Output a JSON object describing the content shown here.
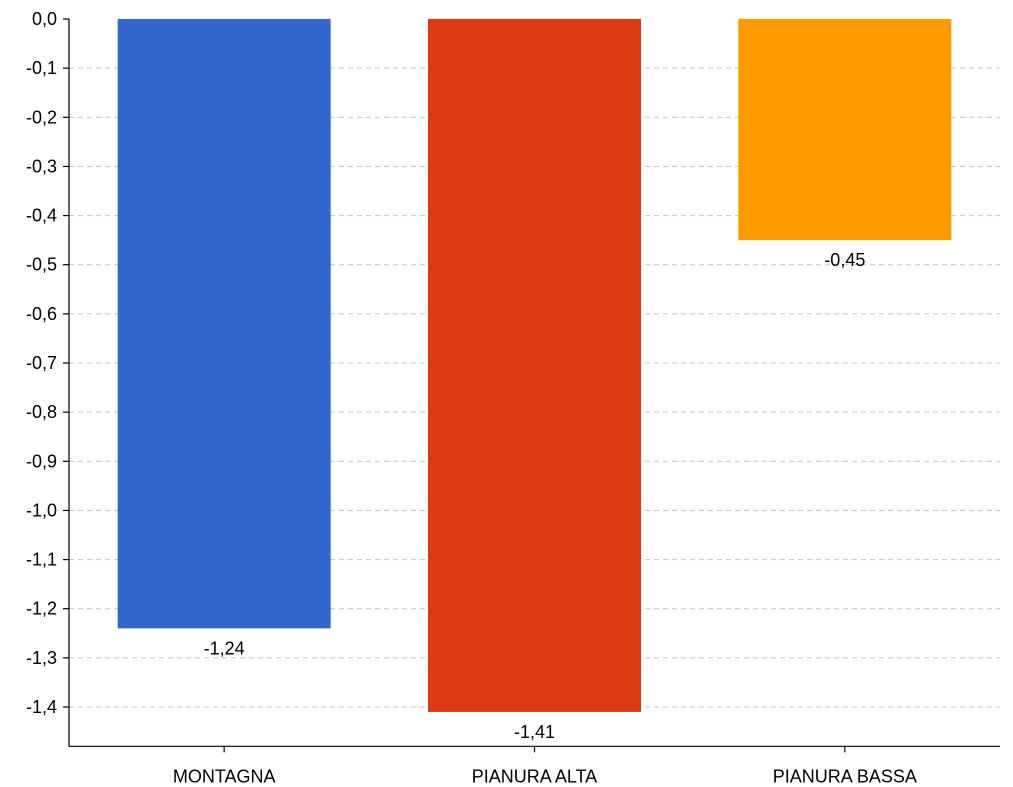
{
  "chart_data": {
    "type": "bar",
    "title": "",
    "xlabel": "",
    "ylabel": "",
    "categories": [
      "MONTAGNA",
      "PIANURA ALTA",
      "PIANURA BASSA"
    ],
    "values": [
      -1.24,
      -1.41,
      -0.45
    ],
    "value_labels": [
      "-1,24",
      "-1,41",
      "-0,45"
    ],
    "colors": [
      "#3366cc",
      "#dc3912",
      "#ff9900"
    ],
    "ylim": [
      -1.48,
      0
    ],
    "y_ticks": [
      0,
      -0.1,
      -0.2,
      -0.3,
      -0.4,
      -0.5,
      -0.6,
      -0.7,
      -0.8,
      -0.9,
      -1.0,
      -1.1,
      -1.2,
      -1.3,
      -1.4
    ],
    "y_tick_labels": [
      "0,0",
      "-0,1",
      "-0,2",
      "-0,3",
      "-0,4",
      "-0,5",
      "-0,6",
      "-0,7",
      "-0,8",
      "-0,9",
      "-1,0",
      "-1,1",
      "-1,2",
      "-1,3",
      "-1,4"
    ],
    "grid": true,
    "legend": "none"
  }
}
